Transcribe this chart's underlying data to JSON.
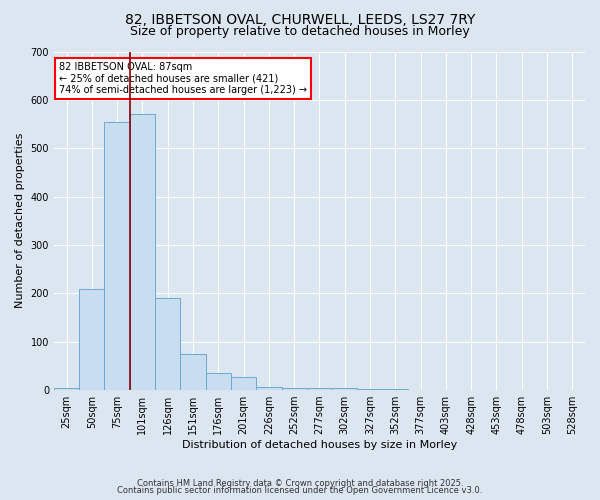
{
  "title1": "82, IBBETSON OVAL, CHURWELL, LEEDS, LS27 7RY",
  "title2": "Size of property relative to detached houses in Morley",
  "xlabel": "Distribution of detached houses by size in Morley",
  "ylabel": "Number of detached properties",
  "categories": [
    "25sqm",
    "50sqm",
    "75sqm",
    "101sqm",
    "126sqm",
    "151sqm",
    "176sqm",
    "201sqm",
    "226sqm",
    "252sqm",
    "277sqm",
    "302sqm",
    "327sqm",
    "352sqm",
    "377sqm",
    "403sqm",
    "428sqm",
    "453sqm",
    "478sqm",
    "503sqm",
    "528sqm"
  ],
  "values": [
    5,
    210,
    555,
    570,
    190,
    75,
    35,
    28,
    7,
    4,
    4,
    4,
    2,
    2,
    0,
    0,
    0,
    0,
    1,
    0,
    0
  ],
  "bar_color": "#c9ddf0",
  "bar_edge_color": "#6aaad4",
  "red_line_x": 2.5,
  "annotation_title": "82 IBBETSON OVAL: 87sqm",
  "annotation_line1": "← 25% of detached houses are smaller (421)",
  "annotation_line2": "74% of semi-detached houses are larger (1,223) →",
  "ylim": [
    0,
    700
  ],
  "yticks": [
    0,
    100,
    200,
    300,
    400,
    500,
    600,
    700
  ],
  "footer1": "Contains HM Land Registry data © Crown copyright and database right 2025.",
  "footer2": "Contains public sector information licensed under the Open Government Licence v3.0.",
  "background_color": "#dce6f0",
  "plot_bg_color": "#dce6f0",
  "grid_color": "#ffffff",
  "title_fontsize": 10,
  "subtitle_fontsize": 9,
  "tick_fontsize": 7,
  "axis_label_fontsize": 8,
  "footer_fontsize": 6,
  "annotation_fontsize": 7
}
